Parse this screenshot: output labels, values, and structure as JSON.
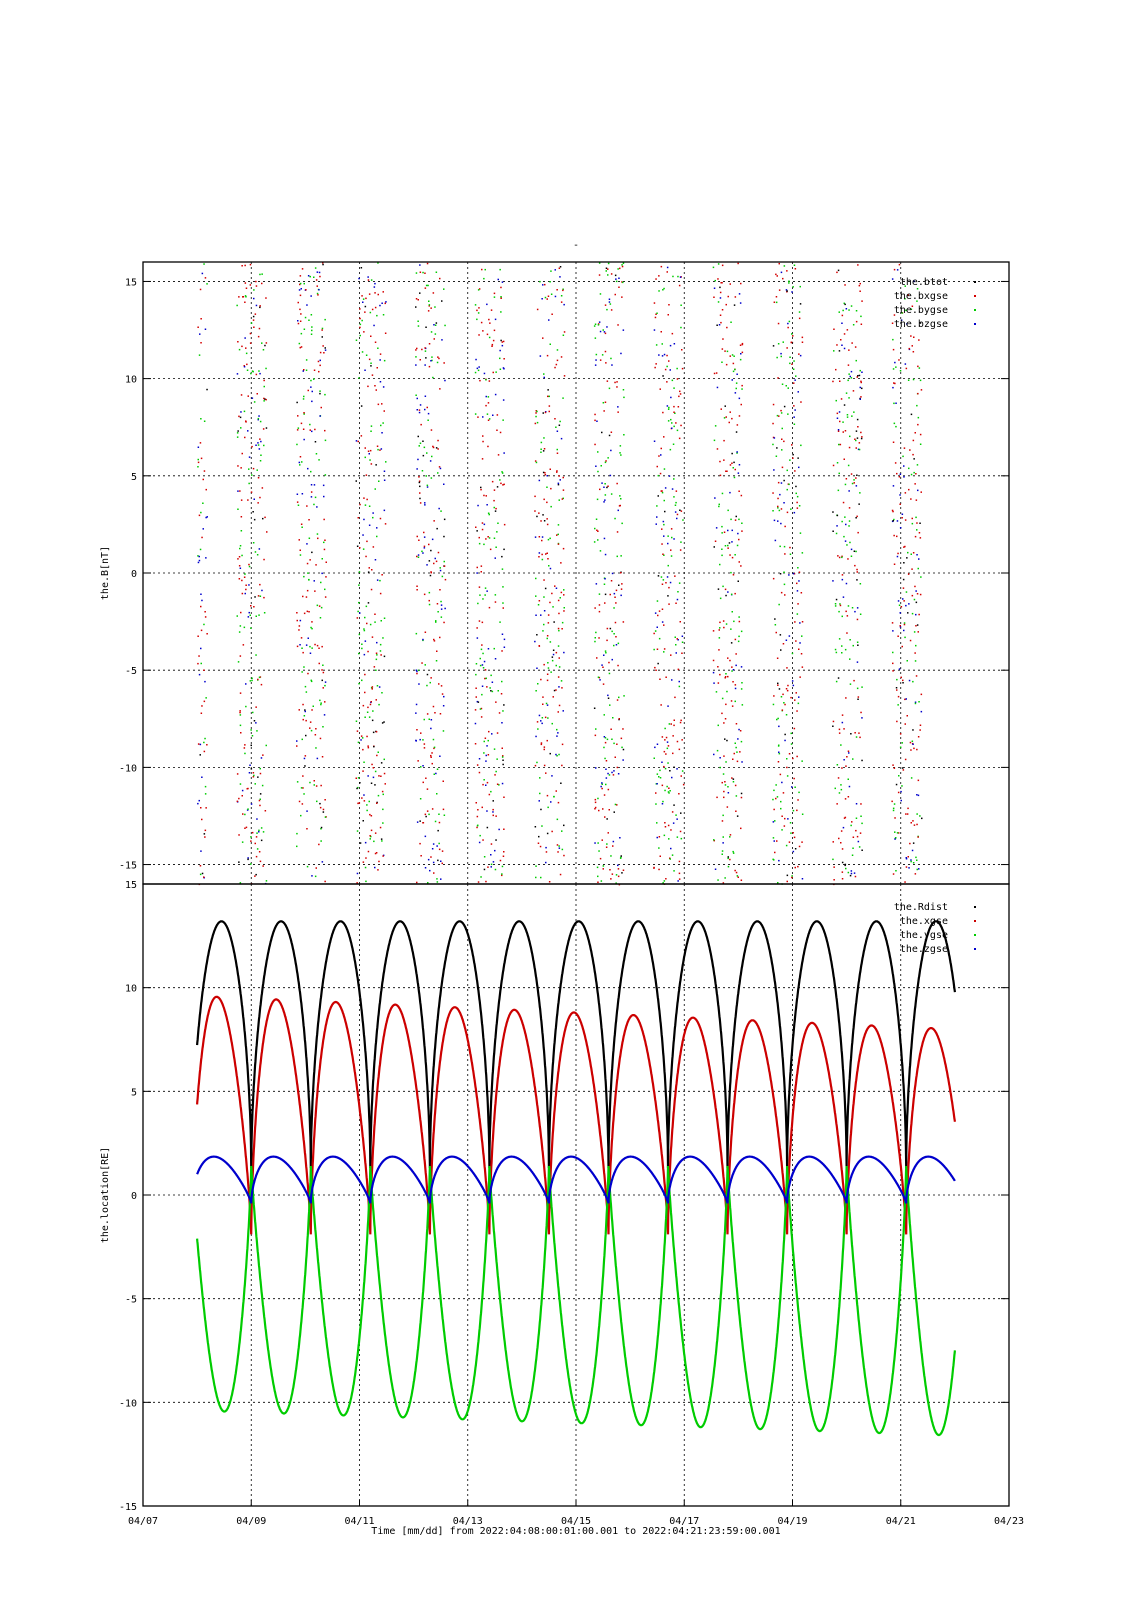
{
  "page_title": "-",
  "x_axis_title": "Time [mm/dd]  from 2022:04:08:00:01:00.001  to  2022:04:21:23:59:00.001",
  "chart_data": [
    {
      "type": "scatter",
      "ylabel": "the.B[nT]",
      "xlim_days": [
        "04/07",
        "04/23"
      ],
      "ylim": [
        -16,
        16
      ],
      "yticks": [
        15,
        10,
        5,
        0,
        -5,
        -10,
        -15
      ],
      "grid": true,
      "legend_position": "top-right",
      "series": [
        {
          "name": "the.btot",
          "color": "#000000",
          "pattern": "scattered points"
        },
        {
          "name": "the.bxgse",
          "color": "#d40000",
          "pattern": "scattered points"
        },
        {
          "name": "the.bygse",
          "color": "#00cc00",
          "pattern": "scattered points"
        },
        {
          "name": "the.bzgse",
          "color": "#0000cc",
          "pattern": "scattered points"
        }
      ]
    },
    {
      "type": "line",
      "ylabel": "the.location[RE]",
      "xlim_days": [
        "04/07",
        "04/23"
      ],
      "ylim": [
        -15,
        15
      ],
      "yticks": [
        15,
        10,
        5,
        0,
        -5,
        -10,
        -15
      ],
      "grid": true,
      "legend_position": "top-right",
      "orbit_period_days": 1.1,
      "first_perigee_day": 9.0,
      "series": [
        {
          "name": "the.Rdist",
          "color": "#000000",
          "peak": 13.2,
          "min": 1.3
        },
        {
          "name": "the.xgse",
          "color": "#cc0000",
          "peak_start": 9.6,
          "peak_end": 8.0,
          "min": -1.9
        },
        {
          "name": "the.ygse",
          "color": "#00cc00",
          "min_start": -10.4,
          "min_end": -11.6,
          "max": 1.4
        },
        {
          "name": "the.zgse",
          "color": "#0000cc",
          "peak": 1.85,
          "min": -0.4
        }
      ]
    }
  ],
  "x_ticks": [
    "04/07",
    "04/09",
    "04/11",
    "04/13",
    "04/15",
    "04/17",
    "04/19",
    "04/21",
    "04/23"
  ],
  "colors": {
    "black": "#000000",
    "red": "#d40000",
    "green": "#00cc00",
    "blue": "#0000cc"
  }
}
